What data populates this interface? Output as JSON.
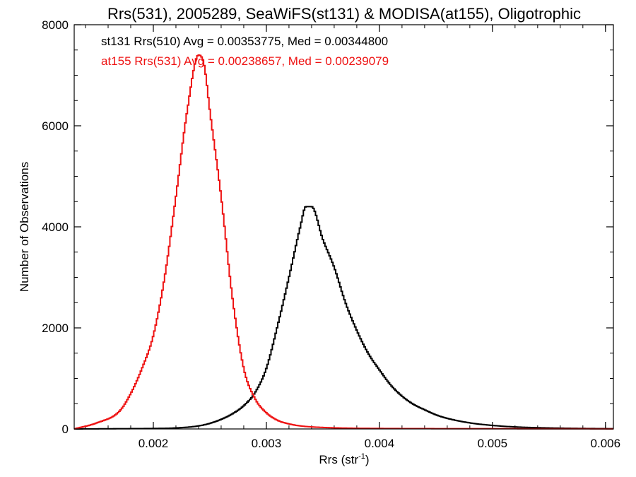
{
  "chart_data": {
    "type": "line",
    "title": "Rrs(531), 2005289, SeaWiFS(st131) & MODISA(at155), Oligotrophic",
    "xlabel": "Rrs (str",
    "xlabel_superscript": "-1",
    "xlabel_suffix": ")",
    "ylabel": "Number of Observations",
    "xlim": [
      0.0013,
      0.00607
    ],
    "ylim": [
      0,
      8000
    ],
    "xticks": [
      {
        "value": 0.002,
        "label": "0.002"
      },
      {
        "value": 0.003,
        "label": "0.003"
      },
      {
        "value": 0.004,
        "label": "0.004"
      },
      {
        "value": 0.005,
        "label": "0.005"
      },
      {
        "value": 0.006,
        "label": "0.006"
      }
    ],
    "yticks": [
      {
        "value": 0,
        "label": "0"
      },
      {
        "value": 2000,
        "label": "2000"
      },
      {
        "value": 4000,
        "label": "4000"
      },
      {
        "value": 6000,
        "label": "6000"
      },
      {
        "value": 8000,
        "label": "8000"
      }
    ],
    "grid": false,
    "legend_position": "top-left",
    "series": [
      {
        "key": "st131",
        "legend": "st131 Rrs(510) Avg = 0.00353775, Med = 0.00344800",
        "color": "#000000",
        "style": "step",
        "x": [
          0.0013,
          0.0017,
          0.002,
          0.0022,
          0.0024,
          0.0025,
          0.0026,
          0.0027,
          0.0028,
          0.0029,
          0.003,
          0.0031,
          0.0032,
          0.0033,
          0.00335,
          0.0034,
          0.0035,
          0.0036,
          0.0037,
          0.0038,
          0.0039,
          0.004,
          0.0041,
          0.0042,
          0.0043,
          0.0044,
          0.0045,
          0.0046,
          0.0048,
          0.005,
          0.0052,
          0.0055,
          0.0058,
          0.00607
        ],
        "y": [
          0,
          5,
          10,
          20,
          60,
          110,
          190,
          300,
          460,
          720,
          1200,
          2050,
          3000,
          4000,
          4400,
          4400,
          3750,
          3200,
          2500,
          1950,
          1500,
          1170,
          870,
          650,
          490,
          380,
          280,
          210,
          120,
          70,
          40,
          20,
          10,
          5
        ]
      },
      {
        "key": "at155",
        "legend": "at155 Rrs(531) Avg = 0.00238657, Med = 0.00239079",
        "color": "#ee1111",
        "style": "step",
        "x": [
          0.0013,
          0.0015,
          0.0017,
          0.0018,
          0.0019,
          0.002,
          0.0021,
          0.0022,
          0.0023,
          0.0024,
          0.00245,
          0.0025,
          0.0026,
          0.0027,
          0.0028,
          0.0029,
          0.003,
          0.0031,
          0.0032,
          0.0033,
          0.0035,
          0.004,
          0.005,
          0.00607
        ],
        "y": [
          0,
          120,
          350,
          700,
          1200,
          1850,
          3000,
          4600,
          6300,
          7400,
          7200,
          6300,
          4600,
          2600,
          1200,
          600,
          320,
          170,
          100,
          60,
          30,
          10,
          5,
          2
        ]
      }
    ]
  }
}
